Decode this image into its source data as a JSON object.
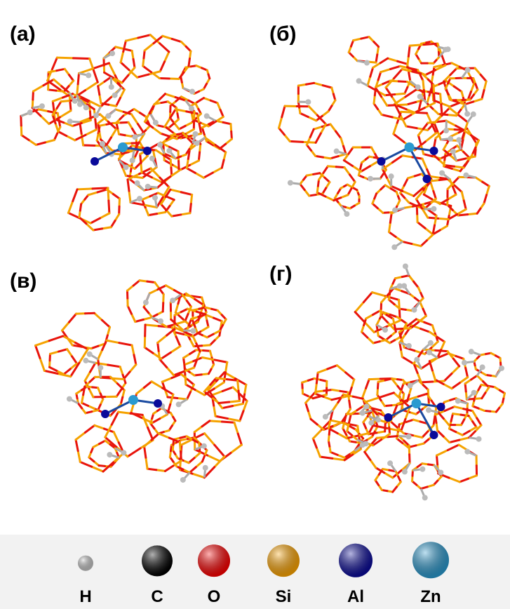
{
  "panels": [
    {
      "label": "(а)"
    },
    {
      "label": "(б)"
    },
    {
      "label": "(в)"
    },
    {
      "label": "(г)"
    }
  ],
  "legend": [
    {
      "label": "H",
      "color": "#c8c8c8"
    },
    {
      "label": "C",
      "color": "#000000"
    },
    {
      "label": "O",
      "color": "#ff0000"
    },
    {
      "label": "Si",
      "color": "#ffa500"
    },
    {
      "label": "Al",
      "color": "#0a0a9a"
    },
    {
      "label": "Zn",
      "color": "#2a9ad0"
    }
  ]
}
